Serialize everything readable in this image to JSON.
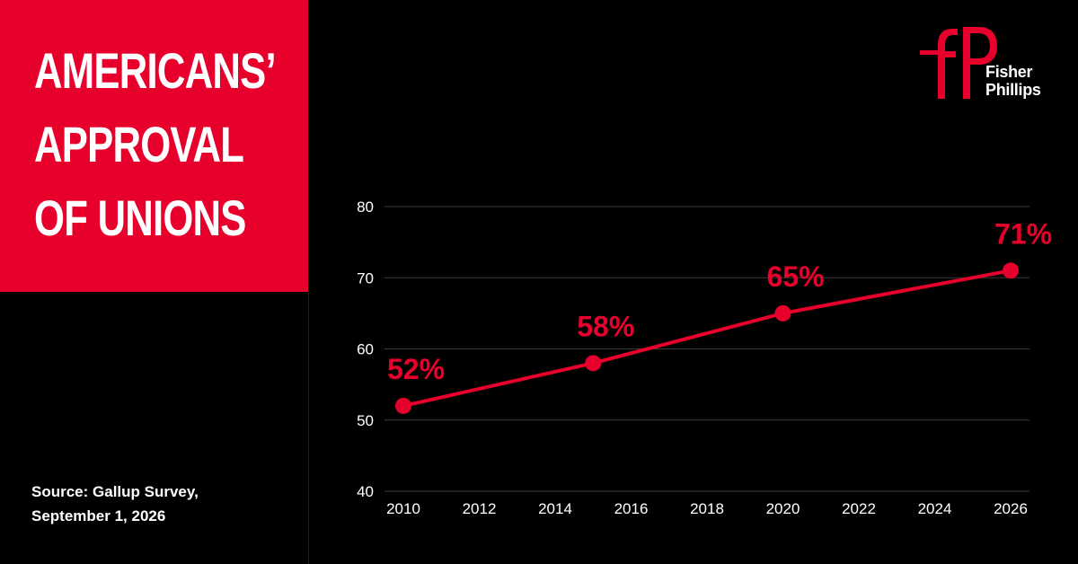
{
  "title": {
    "lines": [
      "AMERICANS’",
      "APPROVAL",
      "OF UNIONS"
    ]
  },
  "source": {
    "line1": "Source: Gallup Survey,",
    "line2": "September 1, 2026"
  },
  "logo": {
    "mark": "fP",
    "word1": "Fisher",
    "word2": "Phillips"
  },
  "colors": {
    "accent": "#e8002d",
    "background": "#000000",
    "text": "#ffffff",
    "grid": "#3a3a3a"
  },
  "chart_data": {
    "type": "line",
    "title": "AMERICANS’ APPROVAL OF UNIONS",
    "xlabel": "",
    "ylabel": "",
    "xlim": [
      2010,
      2026
    ],
    "ylim": [
      40,
      80
    ],
    "x_ticks": [
      2010,
      2012,
      2014,
      2016,
      2018,
      2020,
      2022,
      2024,
      2026
    ],
    "y_ticks": [
      40,
      50,
      60,
      70,
      80
    ],
    "grid": "horizontal",
    "legend": "none",
    "series": [
      {
        "x": [
          2010,
          2015,
          2020,
          2026
        ],
        "values": [
          52,
          58,
          65,
          71
        ],
        "labels": [
          "52%",
          "58%",
          "65%",
          "71%"
        ],
        "color": "#e8002d"
      }
    ]
  }
}
